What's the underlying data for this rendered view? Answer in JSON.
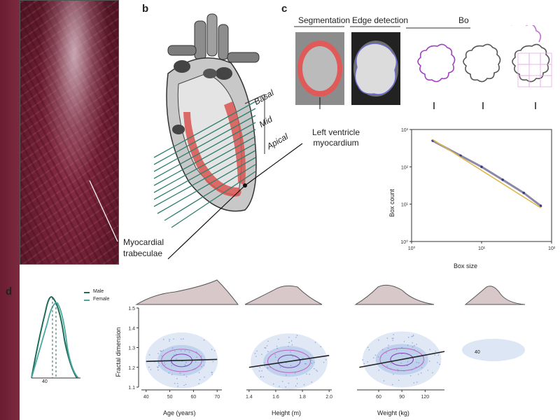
{
  "panels": {
    "a": {
      "callout": "Myocardial trabeculae"
    },
    "b": {
      "letter": "b",
      "levels": [
        "Basal",
        "Mid",
        "Apical"
      ],
      "callout": "Left ventricle myocardium"
    },
    "c": {
      "letter": "c",
      "seg_title": "Segmentation",
      "edge_title": "Edge detection",
      "box_title": "Bo"
    },
    "d": {
      "letter": "d",
      "legend": [
        "Male",
        "Female"
      ],
      "density_tick": "40",
      "extra_tick": "40"
    }
  },
  "chart_data": [
    {
      "type": "line",
      "title": "",
      "xlabel": "Box size",
      "ylabel": "Box count",
      "xscale": "log",
      "yscale": "log",
      "xlim": [
        1,
        100
      ],
      "ylim": [
        1,
        1000
      ],
      "x_ticks": [
        "10⁰",
        "10¹",
        "10²"
      ],
      "y_ticks": [
        "10⁰",
        "10¹",
        "10²",
        "10³"
      ],
      "series": [
        {
          "color": "#8a88a8",
          "x": [
            2,
            5,
            10,
            20,
            40,
            70
          ],
          "y": [
            500,
            200,
            100,
            45,
            20,
            9
          ]
        },
        {
          "color": "#e0b84a",
          "x": [
            2,
            70
          ],
          "y": [
            540,
            8
          ]
        }
      ]
    },
    {
      "type": "scatter",
      "xlabel": "Age (years)",
      "ylabel": "Fractal dimension",
      "xlim": [
        38,
        72
      ],
      "ylim": [
        1.1,
        1.5
      ],
      "x_ticks": [
        "40",
        "50",
        "60",
        "70"
      ],
      "y_ticks": [
        "1.1",
        "1.2",
        "1.3",
        "1.4",
        "1.5"
      ],
      "fit": {
        "x": [
          40,
          70
        ],
        "y": [
          1.23,
          1.24
        ]
      }
    },
    {
      "type": "scatter",
      "xlabel": "Height (m)",
      "xlim": [
        1.38,
        2.02
      ],
      "ylim": [
        1.1,
        1.5
      ],
      "x_ticks": [
        "1.4",
        "1.6",
        "1.8",
        "2.0"
      ],
      "fit": {
        "x": [
          1.4,
          2.0
        ],
        "y": [
          1.2,
          1.26
        ]
      }
    },
    {
      "type": "scatter",
      "xlabel": "Weight (kg)",
      "xlim": [
        32,
        145
      ],
      "ylim": [
        1.1,
        1.5
      ],
      "x_ticks": [
        "60",
        "90",
        "120"
      ],
      "fit": {
        "x": [
          35,
          145
        ],
        "y": [
          1.2,
          1.28
        ]
      }
    }
  ]
}
